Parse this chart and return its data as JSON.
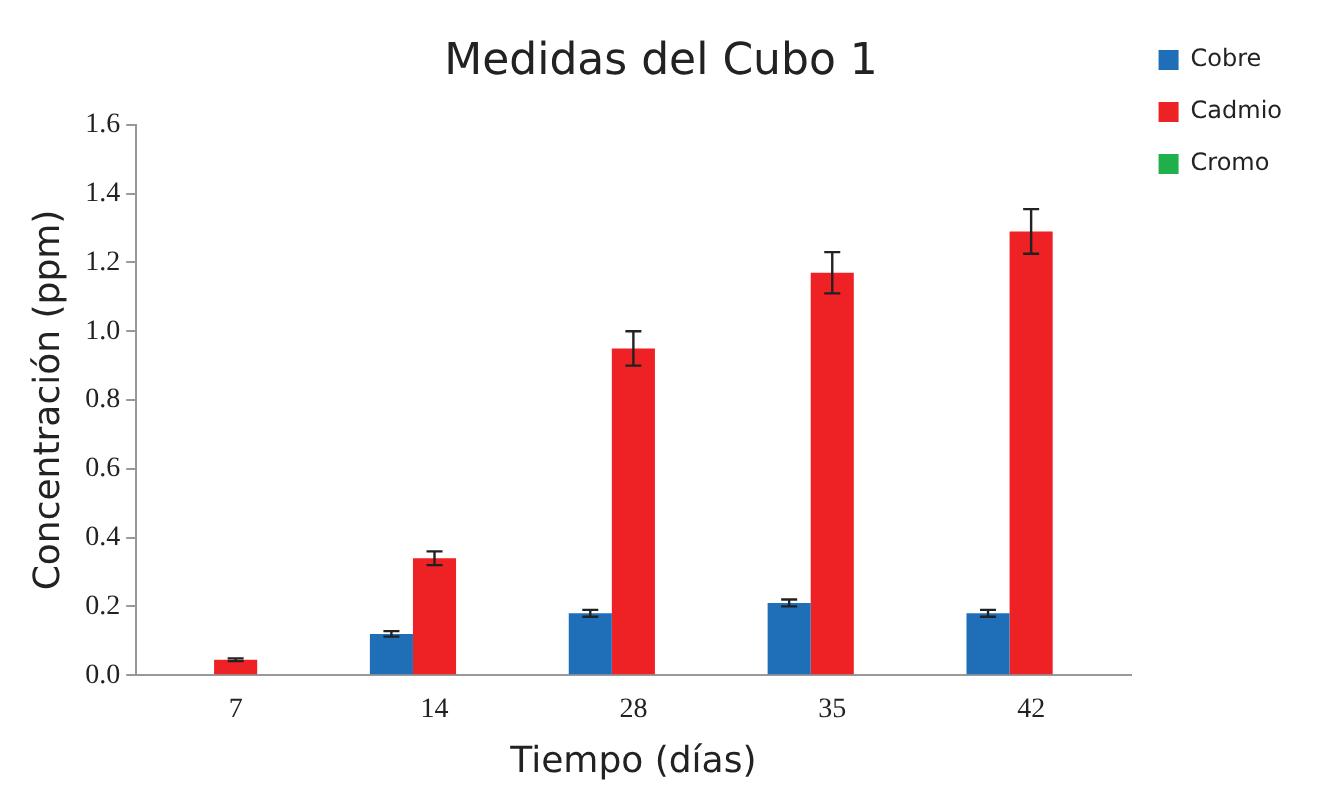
{
  "chart_data": {
    "type": "bar",
    "title": "Medidas del Cubo 1",
    "xlabel": "Tiempo (días)",
    "ylabel": "Concentración (ppm)",
    "categories": [
      "7",
      "14",
      "28",
      "35",
      "42"
    ],
    "series": [
      {
        "name": "Cobre",
        "color": "#1f6fb8",
        "values": [
          null,
          0.12,
          0.18,
          0.21,
          0.18
        ],
        "errors": [
          null,
          0.008,
          0.01,
          0.01,
          0.01
        ]
      },
      {
        "name": "Cadmio",
        "color": "#ee2124",
        "values": [
          0.045,
          0.34,
          0.95,
          1.17,
          1.29
        ],
        "errors": [
          0.004,
          0.02,
          0.05,
          0.06,
          0.065
        ]
      },
      {
        "name": "Cromo",
        "color": "#1fb04b",
        "values": [
          null,
          null,
          null,
          null,
          null
        ]
      }
    ],
    "ylim": [
      0,
      1.6
    ],
    "yticks": [
      {
        "value": 0,
        "label": "0.0"
      },
      {
        "value": 0.2,
        "label": "0.2"
      },
      {
        "value": 0.4,
        "label": "0.4"
      },
      {
        "value": 0.6,
        "label": "0.6"
      },
      {
        "value": 0.8,
        "label": "0.8"
      },
      {
        "value": 1,
        "label": "1.0"
      },
      {
        "value": 1.2,
        "label": "1.2"
      },
      {
        "value": 1.4,
        "label": "1.4"
      },
      {
        "value": 1.6,
        "label": "1.6"
      }
    ],
    "grid": false,
    "legend": "top right"
  }
}
